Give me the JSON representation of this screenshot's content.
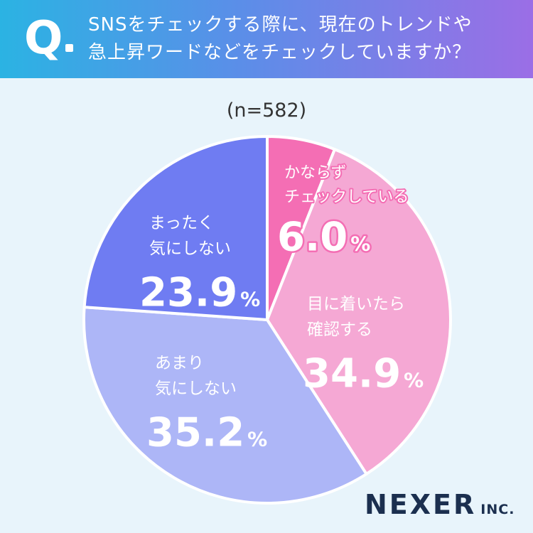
{
  "header": {
    "q_letter": "Q",
    "question_lines": [
      "SNSをチェックする際に、現在のトレンドや",
      "急上昇ワードなどをチェックしていますか？"
    ]
  },
  "sample_label": "(n=582)",
  "logo": {
    "main": "NEXER",
    "suffix": "INC."
  },
  "colors": {
    "header_start": "#2bb3e3",
    "header_end": "#9b6ee6",
    "background": "#e8f4fb"
  },
  "chart_data": {
    "type": "pie",
    "start": "12 o'clock",
    "direction": "clockwise",
    "slices": [
      {
        "label_lines": [
          "かならず",
          "チェックしている"
        ],
        "value": 6.0,
        "display": "6.0",
        "unit": "%",
        "color": "#f46eb4"
      },
      {
        "label_lines": [
          "目に着いたら",
          "確認する"
        ],
        "value": 34.9,
        "display": "34.9",
        "unit": "%",
        "color": "#f5a8d4"
      },
      {
        "label_lines": [
          "あまり",
          "気にしない"
        ],
        "value": 35.2,
        "display": "35.2",
        "unit": "%",
        "color": "#adb6f7"
      },
      {
        "label_lines": [
          "まったく",
          "気にしない"
        ],
        "value": 23.9,
        "display": "23.9",
        "unit": "%",
        "color": "#6f7cf2"
      }
    ]
  }
}
